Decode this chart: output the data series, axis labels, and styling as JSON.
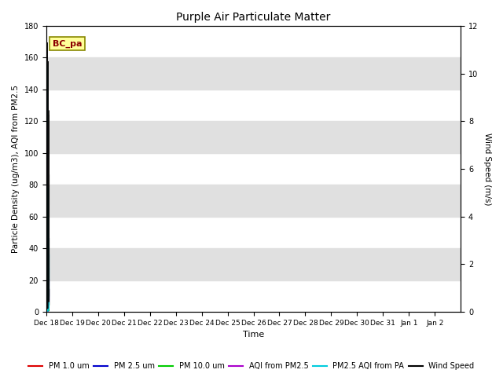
{
  "title": "Purple Air Particulate Matter",
  "xlabel": "Time",
  "ylabel_left": "Particle Density (ug/m3), AQI from PM2.5",
  "ylabel_right": "Wind Speed (m/s)",
  "ylim_left": [
    0,
    180
  ],
  "ylim_right": [
    0,
    12
  ],
  "annotation_text": "BC_pa",
  "annotation_color": "#8B0000",
  "annotation_bg": "#FFFF99",
  "plot_bg": "#FFFFFF",
  "fig_bg": "#FFFFFF",
  "band_color": "#E0E0E0",
  "x_ticks_labels": [
    "Dec 18",
    "Dec 19",
    "Dec 20",
    "Dec 21",
    "Dec 22",
    "Dec 23",
    "Dec 24",
    "Dec 25",
    "Dec 26",
    "Dec 27",
    "Dec 28",
    "Dec 29",
    "Dec 30",
    "Dec 31",
    "Jan 1",
    "Jan 2"
  ],
  "colors": {
    "pm1": "#DD0000",
    "pm25": "#0000CC",
    "pm10": "#00CC00",
    "aqi_pm25": "#AA00CC",
    "aqi_pa": "#00CCDD",
    "wind": "#000000"
  },
  "legend_labels": [
    "PM 1.0 um",
    "PM 2.5 um",
    "PM 10.0 um",
    "AQI from PM2.5",
    "PM2.5 AQI from PA",
    "Wind Speed"
  ]
}
